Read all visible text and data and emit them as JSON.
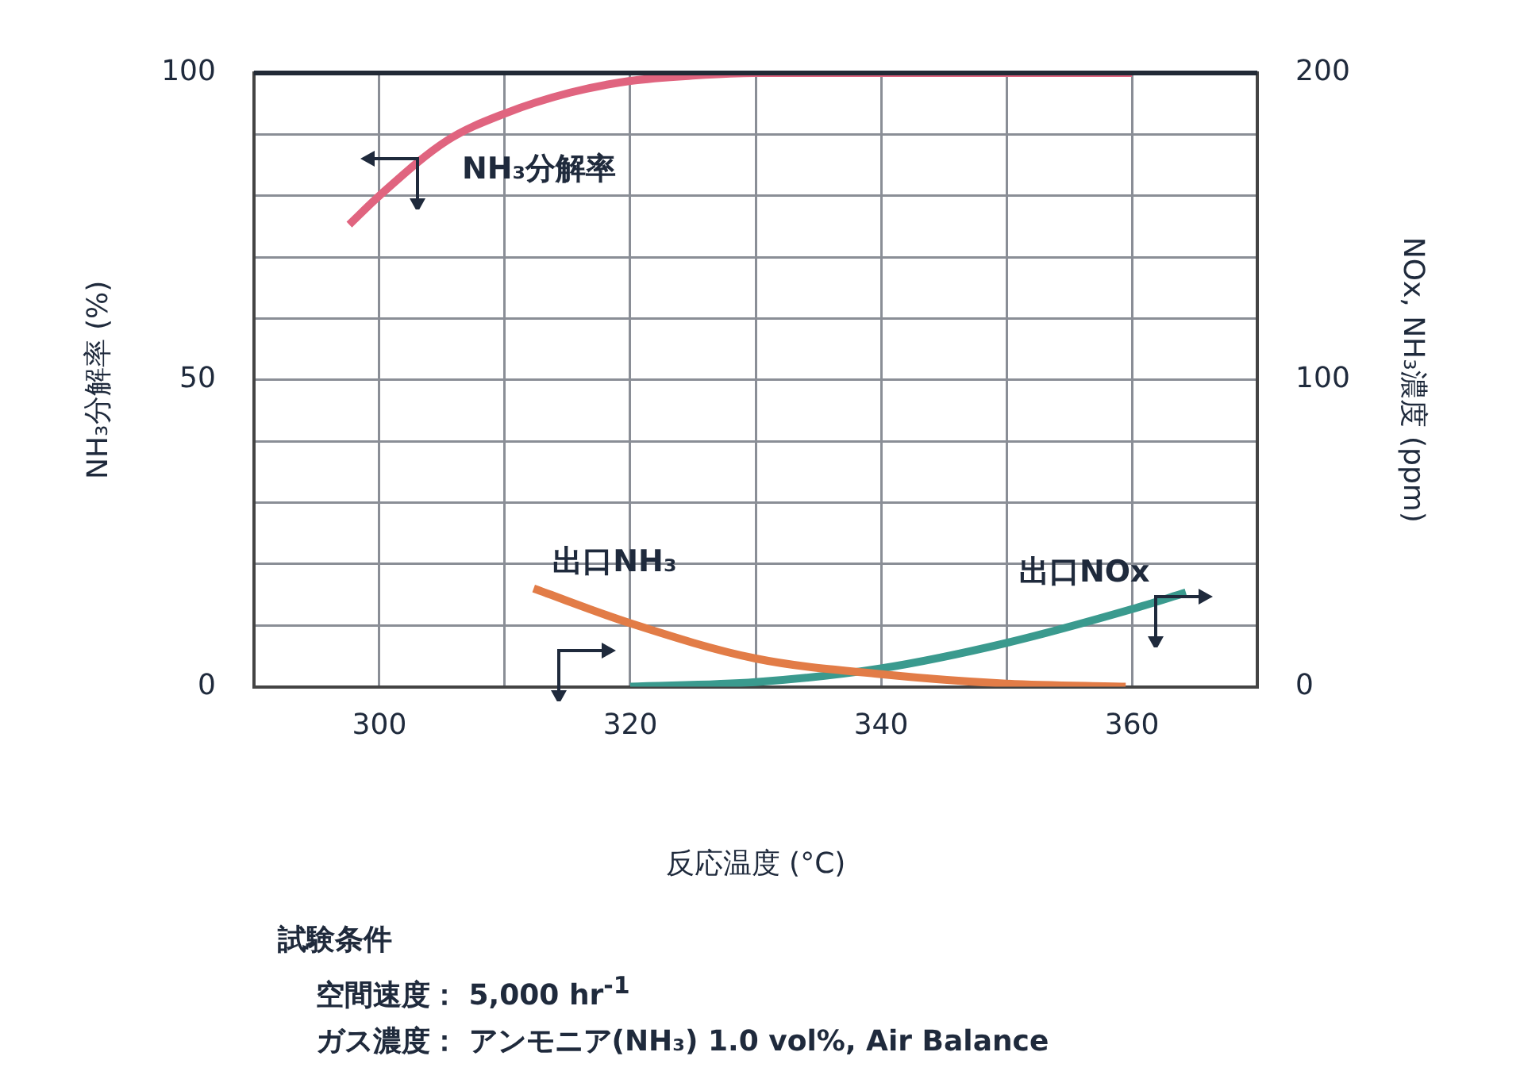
{
  "chart_data": {
    "type": "line",
    "xlabel": "反応温度 (°C)",
    "ylabel": "NH₃分解率 (%)",
    "y2label": "NOx, NH₃濃度 (ppm)",
    "xlim": [
      290,
      370
    ],
    "xticks": [
      300,
      320,
      340,
      360
    ],
    "ylim": [
      0,
      100
    ],
    "yticks": [
      0,
      50,
      100
    ],
    "y2lim": [
      0,
      200
    ],
    "y2ticks": [
      0,
      100,
      200
    ],
    "grid": true,
    "legend": false,
    "marker": "none",
    "line_style": "solid",
    "series": [
      {
        "name": "NH₃分解率",
        "color": "#e0647f",
        "x": [
          297.6,
          300,
          305.4,
          310,
          315.2,
          320,
          325.2,
          330,
          360
        ],
        "values": [
          75.3,
          80,
          89,
          93.4,
          96.8,
          98.7,
          99.6,
          100,
          100
        ]
      },
      {
        "name": "出口NH₃",
        "color": "#e27c47",
        "axis": "y2",
        "x": [
          312.3,
          320,
          330,
          340,
          350,
          359.5
        ],
        "values": [
          32,
          20.7,
          9.2,
          4.1,
          1,
          0
        ]
      },
      {
        "name": "出口NOx",
        "color": "#3a9a8e",
        "axis": "y2",
        "x": [
          320,
          330,
          340,
          350,
          360,
          364.3
        ],
        "values": [
          0,
          1.5,
          6,
          14.3,
          25.3,
          30.7
        ]
      }
    ],
    "annotations": [
      "試験条件",
      "空間速度：  5,000 hr$^{-1}$",
      "ガス濃度：  アンモニア(NH₃) 1.0 vol%,  Air Balance"
    ]
  }
}
